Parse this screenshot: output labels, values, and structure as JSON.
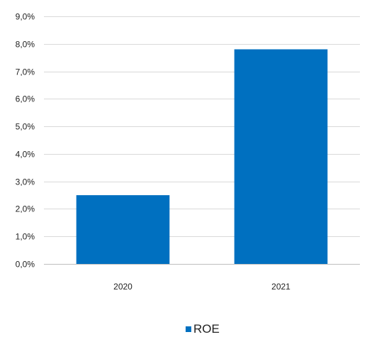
{
  "chart_data": {
    "type": "bar",
    "categories": [
      "2020",
      "2021"
    ],
    "series": [
      {
        "name": "ROE",
        "values": [
          2.5,
          7.8
        ],
        "color": "#0070c0"
      }
    ],
    "ylim": [
      0,
      9
    ],
    "y_ticks": [
      "0,0%",
      "1,0%",
      "2,0%",
      "3,0%",
      "4,0%",
      "5,0%",
      "6,0%",
      "7,0%",
      "8,0%",
      "9,0%"
    ],
    "grid": true,
    "legend": {
      "position": "bottom",
      "entries": [
        "ROE"
      ]
    },
    "colors": {
      "bar": "#0070c0",
      "grid": "#d9d9d9",
      "text": "#222222"
    }
  }
}
